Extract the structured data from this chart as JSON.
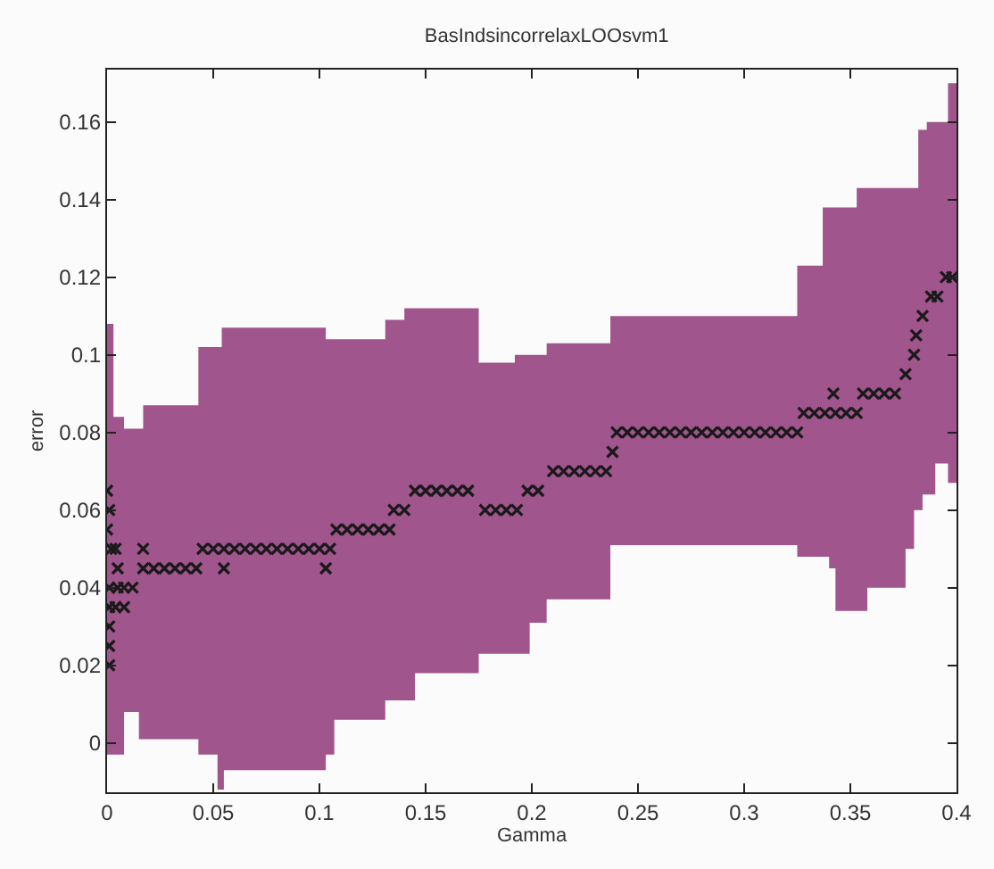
{
  "chart_data": {
    "type": "scatter",
    "title": "BasIndsincorrelaxLOOsvm1",
    "xlabel": "Gamma",
    "ylabel": "error",
    "xlim": [
      0,
      0.4
    ],
    "ylim": [
      -0.0127,
      0.1735
    ],
    "xticks": [
      0,
      0.05,
      0.1,
      0.15,
      0.2,
      0.25,
      0.3,
      0.35,
      0.4
    ],
    "yticks": [
      0,
      0.02,
      0.04,
      0.06,
      0.08,
      0.1,
      0.12,
      0.14,
      0.16
    ],
    "marker": "cross",
    "series": [
      {
        "type": "step",
        "color": "#a0558c",
        "x": [
          0,
          0.003,
          0.008,
          0.015,
          0.017,
          0.043,
          0.052,
          0.054,
          0.055,
          0.103,
          0.107,
          0.131,
          0.14,
          0.145,
          0.175,
          0.192,
          0.199,
          0.207,
          0.237,
          0.325,
          0.337,
          0.34,
          0.343,
          0.353,
          0.358,
          0.376,
          0.38,
          0.382,
          0.384,
          0.386,
          0.39,
          0.396,
          0.4
        ],
        "values": [
          null,
          null,
          null,
          null,
          null,
          null,
          null,
          null,
          null,
          null,
          null,
          null,
          null,
          null,
          null,
          null,
          null,
          null,
          null,
          null,
          null,
          null,
          null,
          null,
          null,
          null,
          null,
          null,
          null,
          null,
          null,
          null,
          null
        ],
        "upper": [
          0.108,
          0.084,
          0.081,
          0.081,
          0.087,
          0.102,
          0.102,
          0.107,
          0.107,
          0.104,
          0.104,
          0.109,
          0.112,
          0.112,
          0.098,
          0.1,
          0.1,
          0.103,
          0.11,
          0.123,
          0.138,
          0.138,
          0.138,
          0.143,
          0.143,
          0.143,
          0.143,
          0.158,
          0.158,
          0.16,
          0.16,
          0.17,
          0.17
        ],
        "lower": [
          -0.003,
          -0.003,
          0.008,
          0.001,
          0.001,
          -0.003,
          -0.012,
          -0.012,
          -0.007,
          -0.003,
          0.006,
          0.011,
          0.011,
          0.018,
          0.023,
          0.023,
          0.031,
          0.037,
          0.051,
          0.048,
          0.048,
          0.045,
          0.034,
          0.034,
          0.04,
          0.05,
          0.06,
          0.06,
          0.064,
          0.064,
          0.072,
          0.067,
          0.067
        ]
      },
      {
        "color": "#1a1a1a",
        "x": [
          0,
          0.001,
          0,
          0.002,
          0.001,
          0.001,
          0.001,
          0.001,
          0.001,
          0.004,
          0.005,
          0.005,
          0.008,
          0.004,
          0.008,
          0.012,
          0.017,
          0.017,
          0.022,
          0.027,
          0.032,
          0.037,
          0.042,
          0.045,
          0.05,
          0.055,
          0.06,
          0.065,
          0.07,
          0.075,
          0.08,
          0.085,
          0.09,
          0.095,
          0.1,
          0.105,
          0.055,
          0.103,
          0.108,
          0.113,
          0.118,
          0.123,
          0.128,
          0.133,
          0.135,
          0.14,
          0.145,
          0.15,
          0.155,
          0.16,
          0.165,
          0.17,
          0.178,
          0.183,
          0.188,
          0.193,
          0.198,
          0.203,
          0.21,
          0.215,
          0.22,
          0.225,
          0.23,
          0.235,
          0.238,
          0.24,
          0.245,
          0.25,
          0.255,
          0.26,
          0.265,
          0.27,
          0.275,
          0.28,
          0.285,
          0.29,
          0.295,
          0.3,
          0.305,
          0.31,
          0.315,
          0.32,
          0.325,
          0.328,
          0.333,
          0.338,
          0.343,
          0.348,
          0.353,
          0.342,
          0.356,
          0.361,
          0.366,
          0.371,
          0.376,
          0.38,
          0.381,
          0.384,
          0.388,
          0.391,
          0.395,
          0.398
        ],
        "values": [
          0.065,
          0.06,
          0.055,
          0.05,
          0.04,
          0.035,
          0.03,
          0.025,
          0.02,
          0.05,
          0.045,
          0.04,
          0.04,
          0.035,
          0.035,
          0.04,
          0.05,
          0.045,
          0.045,
          0.045,
          0.045,
          0.045,
          0.045,
          0.05,
          0.05,
          0.05,
          0.05,
          0.05,
          0.05,
          0.05,
          0.05,
          0.05,
          0.05,
          0.05,
          0.05,
          0.05,
          0.045,
          0.045,
          0.055,
          0.055,
          0.055,
          0.055,
          0.055,
          0.055,
          0.06,
          0.06,
          0.065,
          0.065,
          0.065,
          0.065,
          0.065,
          0.065,
          0.06,
          0.06,
          0.06,
          0.06,
          0.065,
          0.065,
          0.07,
          0.07,
          0.07,
          0.07,
          0.07,
          0.07,
          0.075,
          0.08,
          0.08,
          0.08,
          0.08,
          0.08,
          0.08,
          0.08,
          0.08,
          0.08,
          0.08,
          0.08,
          0.08,
          0.08,
          0.08,
          0.08,
          0.08,
          0.08,
          0.08,
          0.085,
          0.085,
          0.085,
          0.085,
          0.085,
          0.085,
          0.09,
          0.09,
          0.09,
          0.09,
          0.09,
          0.095,
          0.1,
          0.105,
          0.11,
          0.115,
          0.115,
          0.12,
          0.12
        ]
      }
    ]
  }
}
